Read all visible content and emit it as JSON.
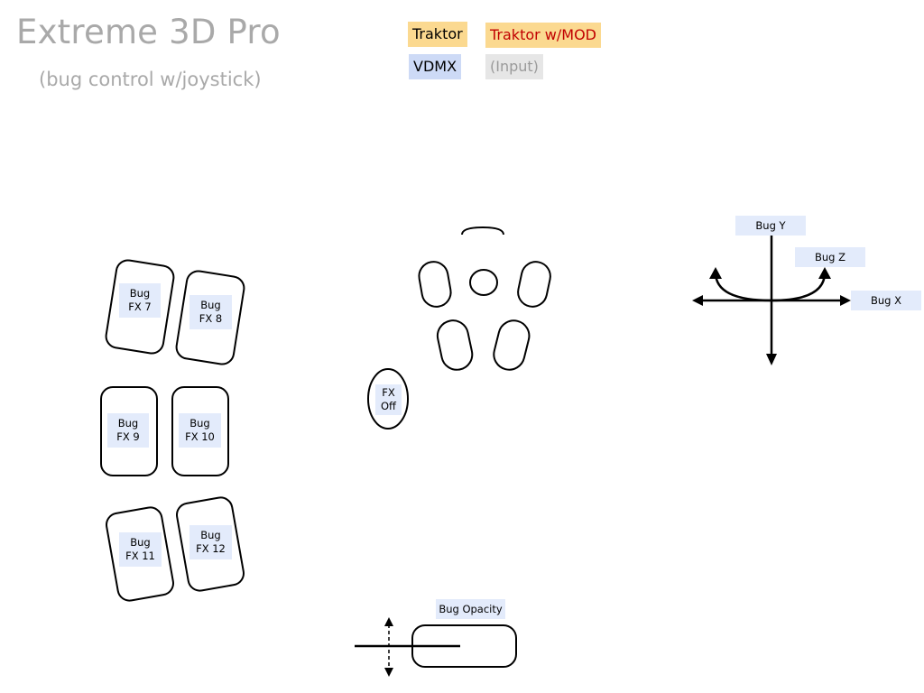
{
  "title": "Extreme 3D Pro",
  "subtitle": "(bug control w/joystick)",
  "legend": {
    "traktor": "Traktor",
    "traktor_mod": "Traktor w/MOD",
    "vdmx": "VDMX",
    "input": "(Input)"
  },
  "colors": {
    "legend_traktor": "#fbd990",
    "legend_vdmx": "#cddaf6",
    "legend_input": "#e6e6e6",
    "traktor_mod_text": "#c10000",
    "title_gray": "#a9a9a9",
    "label_bg": "#e3ebfb"
  },
  "buttons": {
    "fx7": {
      "line1": "Bug",
      "line2": "FX 7"
    },
    "fx8": {
      "line1": "Bug",
      "line2": "FX 8"
    },
    "fx9": {
      "line1": "Bug",
      "line2": "FX 9"
    },
    "fx10": {
      "line1": "Bug",
      "line2": "FX 10"
    },
    "fx11": {
      "line1": "Bug",
      "line2": "FX 11"
    },
    "fx12": {
      "line1": "Bug",
      "line2": "FX 12"
    },
    "fx_off": {
      "line1": "FX",
      "line2": "Off"
    }
  },
  "axes": {
    "y": "Bug Y",
    "z": "Bug Z",
    "x": "Bug X"
  },
  "throttle": {
    "label": "Bug Opacity"
  }
}
